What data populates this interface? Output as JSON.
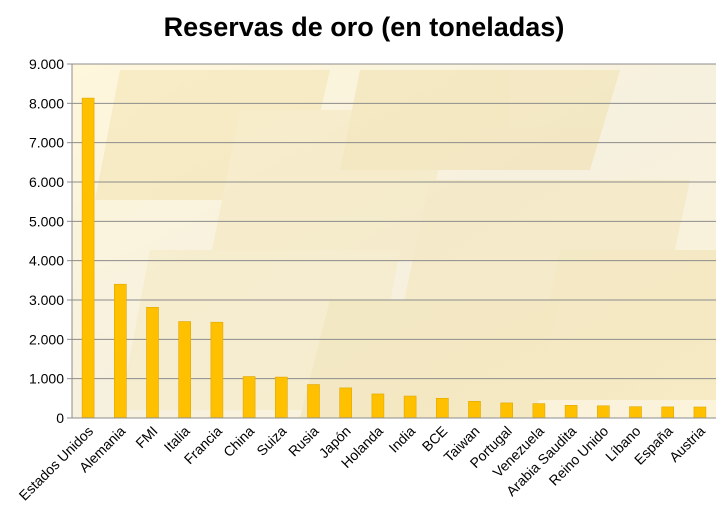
{
  "chart_data": {
    "type": "bar",
    "title": "Reservas de oro (en toneladas)",
    "xlabel": "",
    "ylabel": "",
    "ylim": [
      0,
      9000
    ],
    "yticks": [
      0,
      1000,
      2000,
      3000,
      4000,
      5000,
      6000,
      7000,
      8000,
      9000
    ],
    "ytick_labels": [
      "0",
      "1.000",
      "2.000",
      "3.000",
      "4.000",
      "5.000",
      "6.000",
      "7.000",
      "8.000",
      "9.000"
    ],
    "grid": true,
    "legend": "none",
    "categories": [
      "Estados Unidos",
      "Alemania",
      "FMI",
      "Italia",
      "Francia",
      "China",
      "Suiza",
      "Rusia",
      "Japón",
      "Holanda",
      "India",
      "BCE",
      "Taiwan",
      "Portugal",
      "Venezuela",
      "Arabia Saudita",
      "Reino Unido",
      "Líbano",
      "España",
      "Austria"
    ],
    "values": [
      8133,
      3401,
      2814,
      2452,
      2435,
      1054,
      1040,
      851,
      765,
      612,
      558,
      501,
      424,
      383,
      366,
      323,
      310,
      287,
      282,
      280
    ],
    "colors": {
      "bar": "#FFC000",
      "bar_edge": "#E0A800",
      "background": "#FFF6DA",
      "grid": "#8C8C8C"
    }
  }
}
